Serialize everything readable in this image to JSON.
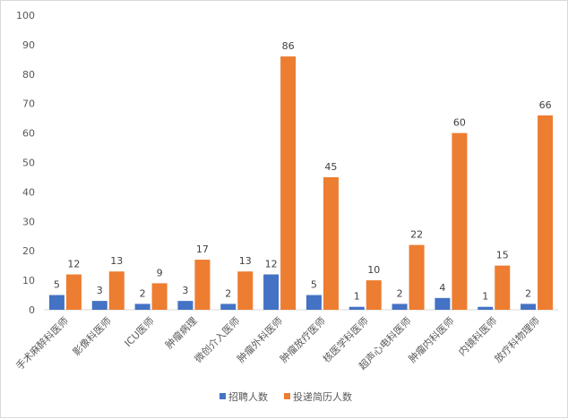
{
  "chart_data": {
    "type": "bar",
    "categories": [
      "手术麻醉科医师",
      "影像科医师",
      "ICU医师",
      "肿瘤病理",
      "微创介入医师",
      "肿瘤外科医师",
      "肿瘤放疗医师",
      "核医学科医师",
      "超声心电科医师",
      "肿瘤内科医师",
      "内镜科医师",
      "放疗科物理师"
    ],
    "series": [
      {
        "name": "招聘人数",
        "color": "#4472c4",
        "values": [
          5,
          3,
          2,
          3,
          2,
          12,
          5,
          1,
          2,
          4,
          1,
          2
        ]
      },
      {
        "name": "投递简历人数",
        "color": "#ed7d31",
        "values": [
          12,
          13,
          9,
          17,
          13,
          86,
          45,
          10,
          22,
          60,
          15,
          66
        ]
      }
    ],
    "ylim": [
      0,
      100
    ],
    "yticks": [
      0,
      10,
      20,
      30,
      40,
      50,
      60,
      70,
      80,
      90,
      100
    ],
    "grid": false,
    "legend_position": "bottom"
  }
}
